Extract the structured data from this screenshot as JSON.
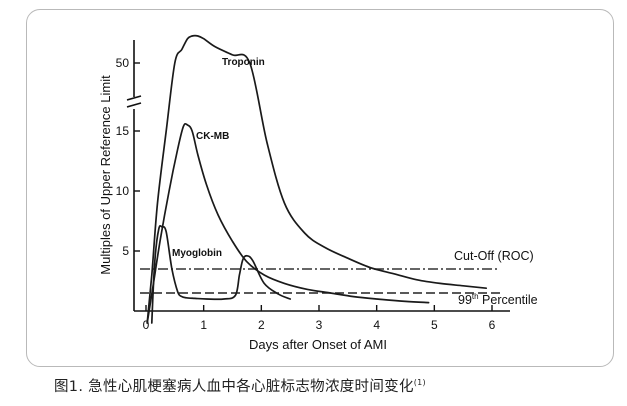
{
  "figure": {
    "caption_text": "图1. 急性心肌梗塞病人血中各心脏标志物浓度时间变化",
    "caption_ref": "(1)"
  },
  "chart_data": {
    "type": "line",
    "title": "",
    "xlabel": "Days after Onset of AMI",
    "ylabel": "Multiples of Upper Reference Limit",
    "x_ticks": [
      "0",
      "1",
      "2",
      "3",
      "4",
      "5",
      "6"
    ],
    "y_ticks": [
      "5",
      "10",
      "15",
      "50"
    ],
    "xlim": [
      0,
      6.3
    ],
    "ylim_lower": [
      0,
      17
    ],
    "ylim_upper": [
      48,
      72
    ],
    "axis_break": true,
    "grid": false,
    "series": [
      {
        "name": "Troponin",
        "x": [
          0.02,
          0.1,
          0.2,
          0.35,
          0.5,
          0.62,
          0.72,
          0.8,
          0.9,
          1.0,
          1.2,
          1.5,
          1.8,
          2.1,
          2.4,
          2.75,
          3.1,
          3.5,
          3.9,
          4.3,
          4.7,
          5.1,
          5.5,
          5.9
        ],
        "y": [
          -1,
          3,
          9,
          15,
          50,
          60,
          68,
          70,
          70,
          68,
          62,
          56,
          50,
          14,
          9,
          6.5,
          5.3,
          4.4,
          3.6,
          3.1,
          2.6,
          2.3,
          2.1,
          1.9
        ]
      },
      {
        "name": "CK-MB",
        "x": [
          0.02,
          0.12,
          0.25,
          0.4,
          0.55,
          0.65,
          0.72,
          0.8,
          0.9,
          1.05,
          1.25,
          1.5,
          1.75,
          2.05,
          2.4,
          2.8,
          3.2,
          3.6,
          4.0,
          4.5,
          4.9
        ],
        "y": [
          -1,
          2,
          6,
          10,
          13.5,
          15.4,
          15.5,
          15,
          13,
          10.5,
          8,
          5.8,
          4.1,
          3.0,
          2.3,
          1.8,
          1.5,
          1.2,
          1.0,
          0.8,
          0.7
        ]
      },
      {
        "name": "Myoglobin",
        "x": [
          0.1,
          0.15,
          0.22,
          0.28,
          0.35,
          0.45,
          0.55,
          0.62,
          0.7,
          0.85,
          1.05,
          1.35,
          1.55,
          1.62,
          1.68,
          1.75,
          1.85,
          2.05,
          2.3,
          2.5
        ],
        "y": [
          -1,
          4,
          6.8,
          7.0,
          6.6,
          3.5,
          1.6,
          1.2,
          1.1,
          1.05,
          1.0,
          1.0,
          1.3,
          3.0,
          4.3,
          4.6,
          4.2,
          2.3,
          1.4,
          1.0
        ]
      }
    ],
    "reference_lines": [
      {
        "name": "Cut-Off (ROC)",
        "y": 3.5,
        "style": "dash-dot"
      },
      {
        "name": "99th Percentile",
        "name_main": "99",
        "name_sup": "th",
        "name_rest": " Percentile",
        "y": 1.5,
        "style": "dashed"
      }
    ]
  }
}
